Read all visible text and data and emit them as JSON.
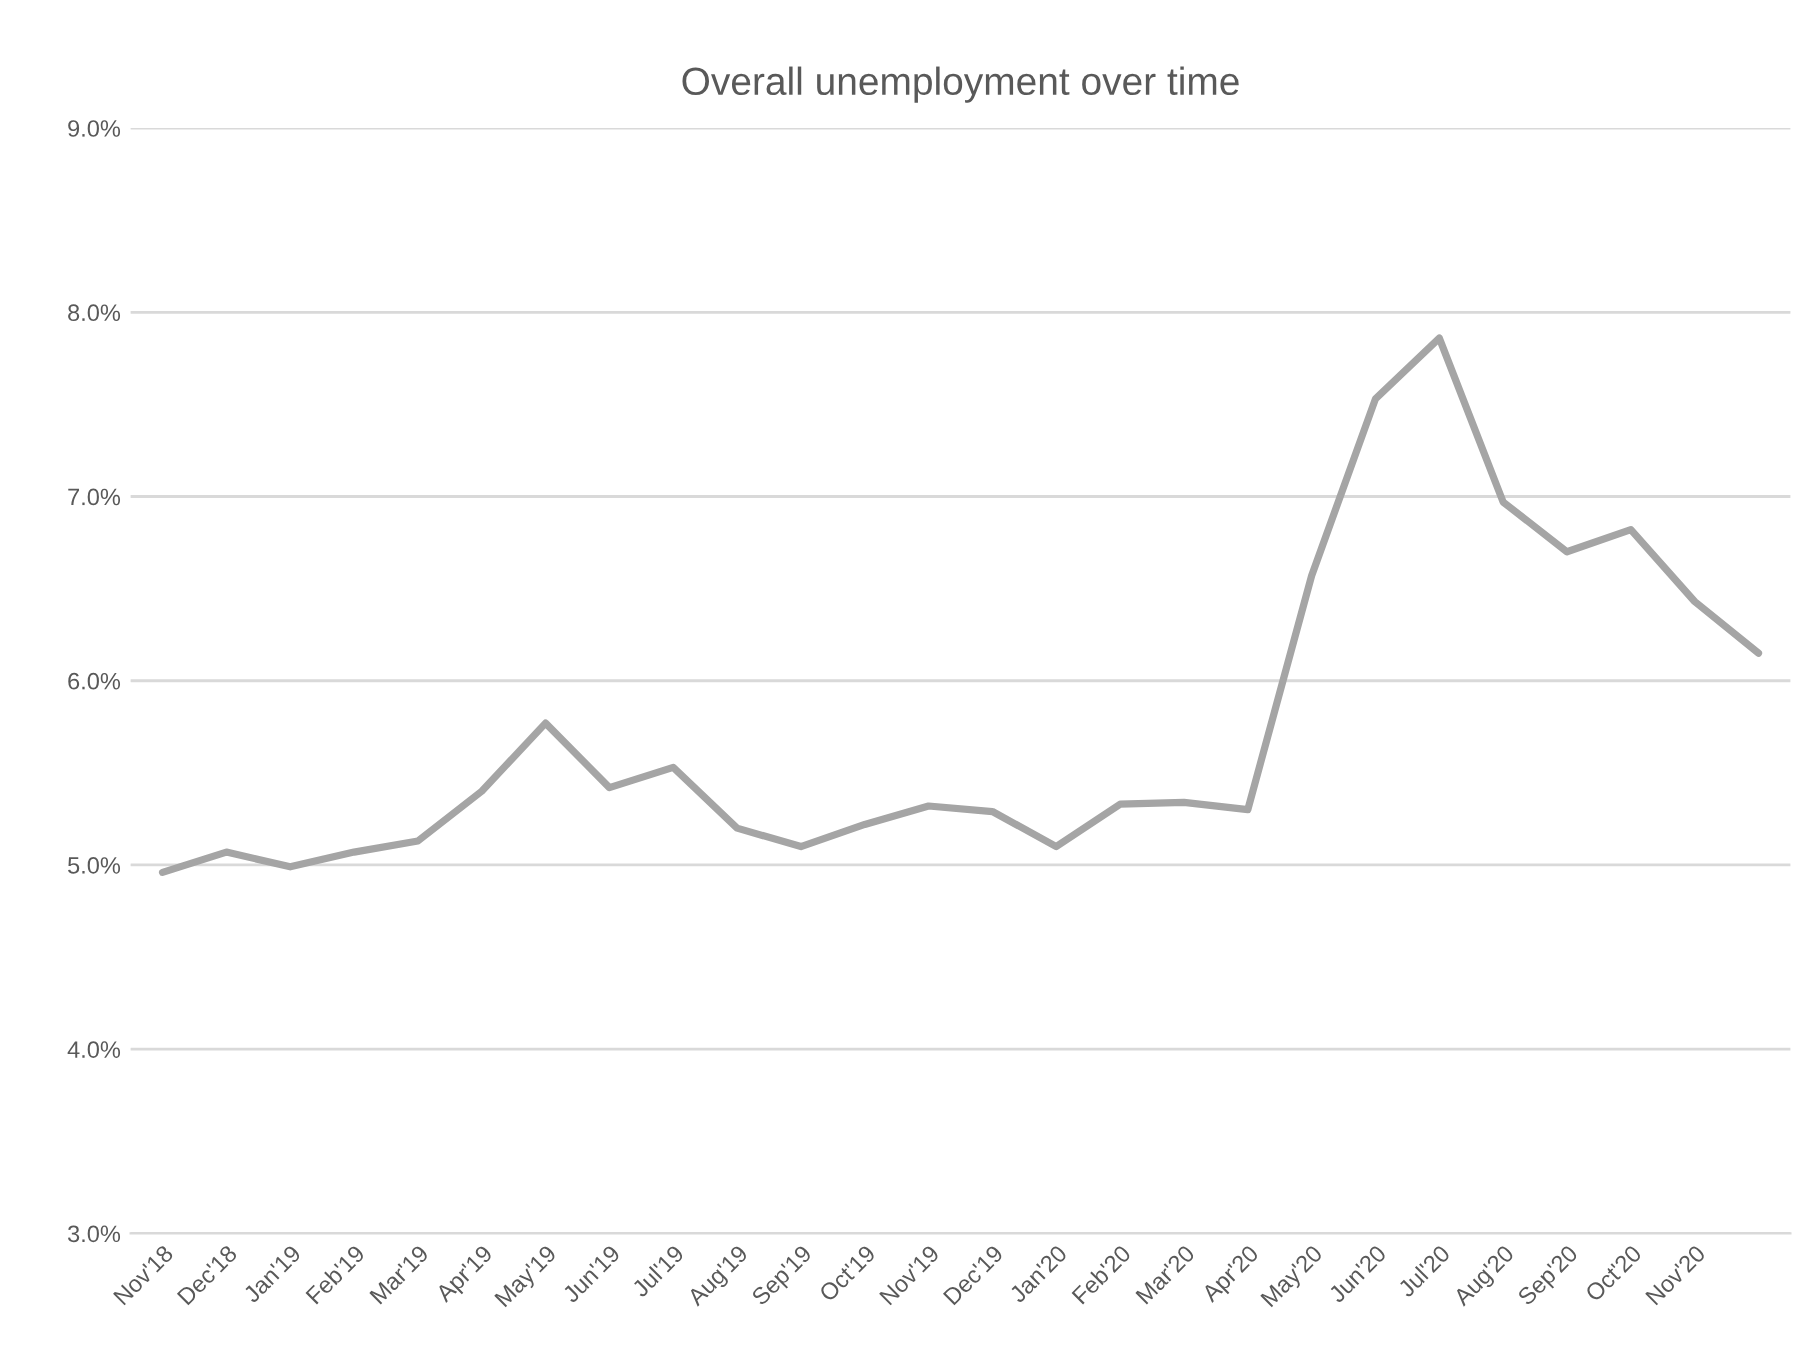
{
  "chart_data": {
    "type": "line",
    "title": "Overall unemployment over time",
    "categories": [
      "Nov'18",
      "Dec'18",
      "Jan'19",
      "Feb'19",
      "Mar'19",
      "Apr'19",
      "May'19",
      "Jun'19",
      "Jul'19",
      "Aug'19",
      "Sep'19",
      "Oct'19",
      "Nov'19",
      "Dec'19",
      "Jan'20",
      "Feb'20",
      "Mar'20",
      "Apr'20",
      "May'20",
      "Jun'20",
      "Jul'20",
      "Aug'20",
      "Sep'20",
      "Oct'20",
      "Nov'20",
      null
    ],
    "series": [
      {
        "color": "#a5a5a5",
        "values": [
          4.96,
          5.07,
          4.99,
          5.07,
          5.13,
          5.4,
          5.77,
          5.42,
          5.53,
          5.2,
          5.1,
          5.22,
          5.32,
          5.29,
          5.1,
          5.33,
          5.34,
          5.3,
          6.57,
          7.53,
          7.86,
          6.97,
          6.7,
          6.82,
          6.43,
          6.15
        ]
      }
    ],
    "ylim": [
      3,
      9
    ],
    "yticks": [
      {
        "value": 3,
        "label": "3.0%"
      },
      {
        "value": 4,
        "label": "4.0%"
      },
      {
        "value": 5,
        "label": "5.0%"
      },
      {
        "value": 6,
        "label": "6.0%"
      },
      {
        "value": 7,
        "label": "7.0%"
      },
      {
        "value": 8,
        "label": "8.0%"
      },
      {
        "value": 9,
        "label": "9.0%"
      }
    ],
    "grid": "y",
    "marker": "none",
    "line_style": "solid"
  }
}
